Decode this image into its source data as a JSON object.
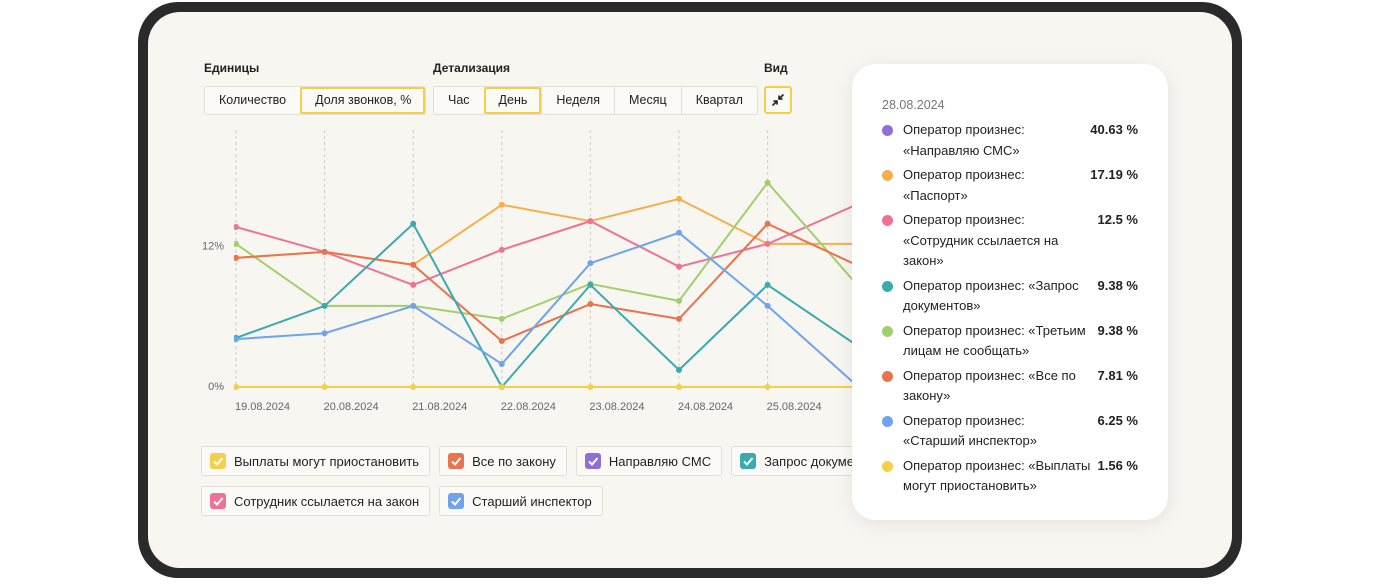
{
  "controls": {
    "units": {
      "label": "Единицы",
      "options": [
        "Количество",
        "Доля звонков, %"
      ],
      "selected": 1
    },
    "detail": {
      "label": "Детализация",
      "options": [
        "Час",
        "День",
        "Неделя",
        "Месяц",
        "Квартал"
      ],
      "selected": 1
    },
    "view": {
      "label": "Вид"
    }
  },
  "chart_data": {
    "type": "line",
    "categories": [
      "19.08.2024",
      "20.08.2024",
      "21.08.2024",
      "22.08.2024",
      "23.08.2024",
      "24.08.2024",
      "25.08.2024",
      null
    ],
    "ylim": [
      0,
      22
    ],
    "yticks": [
      {
        "value": 0,
        "label": "0%"
      },
      {
        "value": 12,
        "label": "12%"
      }
    ],
    "x_grid": true,
    "series": [
      {
        "color": "#f5b04a",
        "values": [
          11.05,
          11.57,
          10.46,
          15.6,
          14.2,
          16.1,
          12.25,
          12.25
        ]
      },
      {
        "color": "#f07196",
        "values": [
          13.7,
          11.57,
          8.74,
          11.74,
          14.2,
          10.3,
          12.25,
          15.6
        ]
      },
      {
        "color": "#a2cf6e",
        "values": [
          12.25,
          6.94,
          6.94,
          5.83,
          8.83,
          7.37,
          17.5,
          8.83
        ]
      },
      {
        "color": "#e8734e",
        "values": [
          11.05,
          11.57,
          10.46,
          3.94,
          7.1,
          5.83,
          13.97,
          10.46
        ]
      },
      {
        "color": "#3aa9b0",
        "values": [
          4.2,
          6.94,
          13.97,
          0,
          8.74,
          1.46,
          8.74,
          3.6
        ]
      },
      {
        "color": "#6fa3ee",
        "values": [
          4.1,
          4.6,
          6.94,
          1.97,
          10.6,
          13.2,
          6.94,
          0.17
        ]
      },
      {
        "color": "#f5cf48",
        "values": [
          0,
          0,
          0,
          0,
          0,
          0,
          0,
          0
        ]
      }
    ]
  },
  "legend": [
    {
      "name": "Выплаты могут приостановить",
      "color": "#f5cf48"
    },
    {
      "name": "Все по закону",
      "color": "#e8734e"
    },
    {
      "name": "Направляю СМС",
      "color": "#8e6fd8"
    },
    {
      "name": "Запрос документов",
      "color": "#3aa9b0"
    },
    {
      "name": "Сотрудник ссылается на закон",
      "color": "#f07196"
    },
    {
      "name": "Старший инспектор",
      "color": "#6fa3ee"
    }
  ],
  "tooltip": {
    "date": "28.08.2024",
    "items": [
      {
        "color": "#8e6fd8",
        "lines": [
          "Оператор произнес:",
          "«Направляю СМС»"
        ],
        "value": "40.63 %"
      },
      {
        "color": "#f5b04a",
        "lines": [
          "Оператор произнес:",
          "«Паспорт»"
        ],
        "value": "17.19 %"
      },
      {
        "color": "#f07196",
        "lines": [
          "Оператор произнес:",
          "«Сотрудник ссылается на",
          "закон»"
        ],
        "value": "12.5 %"
      },
      {
        "color": "#3aa9b0",
        "lines": [
          "Оператор произнес: «Запрос",
          "документов»"
        ],
        "value": "9.38 %"
      },
      {
        "color": "#a2cf6e",
        "lines": [
          "Оператор произнес: «Третьим",
          "лицам не сообщать»"
        ],
        "value": "9.38 %"
      },
      {
        "color": "#e8734e",
        "lines": [
          "Оператор произнес: «Все по",
          "закону»"
        ],
        "value": "7.81 %"
      },
      {
        "color": "#6fa3ee",
        "lines": [
          "Оператор произнес:",
          "«Старший инспектор»"
        ],
        "value": "6.25 %"
      },
      {
        "color": "#f5cf48",
        "lines": [
          "Оператор произнес: «Выплаты",
          "могут приостановить»"
        ],
        "value": "1.56 %"
      }
    ]
  }
}
